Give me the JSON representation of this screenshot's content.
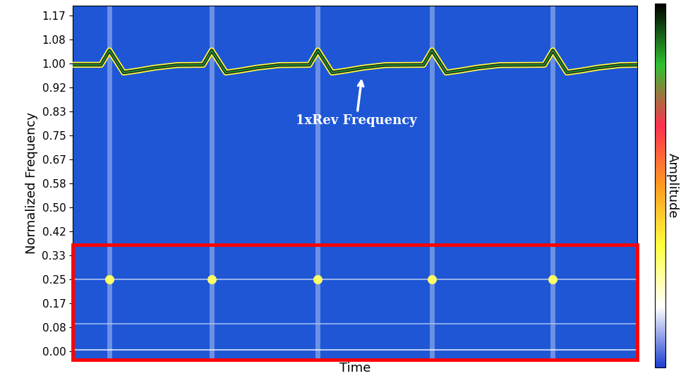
{
  "chart_data": {
    "type": "line",
    "x_label": "Time",
    "y_label": "Normalized Frequency",
    "colorbar_label": "Amplitude",
    "tick_labels": "y",
    "xlim": [
      0,
      100
    ],
    "ylim": [
      -0.03,
      1.2
    ],
    "yticks": [
      {
        "value": 0.0,
        "label": "0.00"
      },
      {
        "value": 0.0833,
        "label": "0.08"
      },
      {
        "value": 0.1667,
        "label": "0.17"
      },
      0.25,
      {
        "value": 0.3333,
        "label": "0.33"
      },
      {
        "value": 0.4167,
        "label": "0.42"
      },
      {
        "value": 0.5,
        "label": "0.50"
      },
      {
        "value": 0.5833,
        "label": "0.58"
      },
      {
        "value": 0.6667,
        "label": "0.67"
      },
      0.75,
      {
        "value": 0.8333,
        "label": "0.83"
      },
      {
        "value": 0.9167,
        "label": "0.92"
      },
      {
        "value": 1.0,
        "label": "1.00"
      },
      {
        "value": 1.0833,
        "label": "1.08"
      },
      {
        "value": 1.1667,
        "label": "1.17"
      }
    ],
    "grid": false,
    "events": [
      6.5,
      24.6,
      43.4,
      63.6,
      85.0
    ],
    "series": [
      {
        "type": "line",
        "color": "#1a8f2e",
        "x": [
          0,
          5.0,
          6.5,
          9.0,
          11.5,
          14.5,
          18.5,
          23.1,
          24.6,
          27.1,
          29.6,
          32.6,
          36.6,
          41.9,
          43.4,
          45.9,
          48.4,
          51.4,
          55.4,
          62.1,
          63.6,
          66.1,
          68.6,
          71.6,
          75.6,
          83.5,
          85.0,
          87.5,
          90.0,
          93.0,
          97.0,
          100
        ],
        "values": [
          0.995,
          0.995,
          1.045,
          0.968,
          0.975,
          0.985,
          0.994,
          0.995,
          1.045,
          0.968,
          0.975,
          0.985,
          0.994,
          0.995,
          1.045,
          0.968,
          0.975,
          0.985,
          0.994,
          0.995,
          1.045,
          0.968,
          0.975,
          0.985,
          0.994,
          0.995,
          1.045,
          0.968,
          0.975,
          0.985,
          0.994,
          0.995
        ]
      },
      {
        "type": "line",
        "color": "#c8d8f0",
        "x": [
          0,
          100
        ],
        "values": [
          0.25,
          0.25
        ]
      },
      {
        "type": "line",
        "color": "#b0c8f0",
        "x": [
          0,
          100
        ],
        "values": [
          0.095,
          0.095
        ]
      },
      {
        "type": "line",
        "color": "#ffffff",
        "x": [
          0,
          100
        ],
        "values": [
          0.005,
          0.005
        ]
      },
      {
        "type": "scatter",
        "color": "#ffff66",
        "x": [
          6.5,
          24.6,
          43.4,
          63.6,
          85.0
        ],
        "values": [
          0.25,
          0.25,
          0.25,
          0.25,
          0.25
        ]
      }
    ],
    "annotations": [
      {
        "text": "1xRev Frequency",
        "xy": [
          51.2,
          0.955
        ],
        "xytext": [
          50.2,
          0.8
        ]
      }
    ]
  }
}
